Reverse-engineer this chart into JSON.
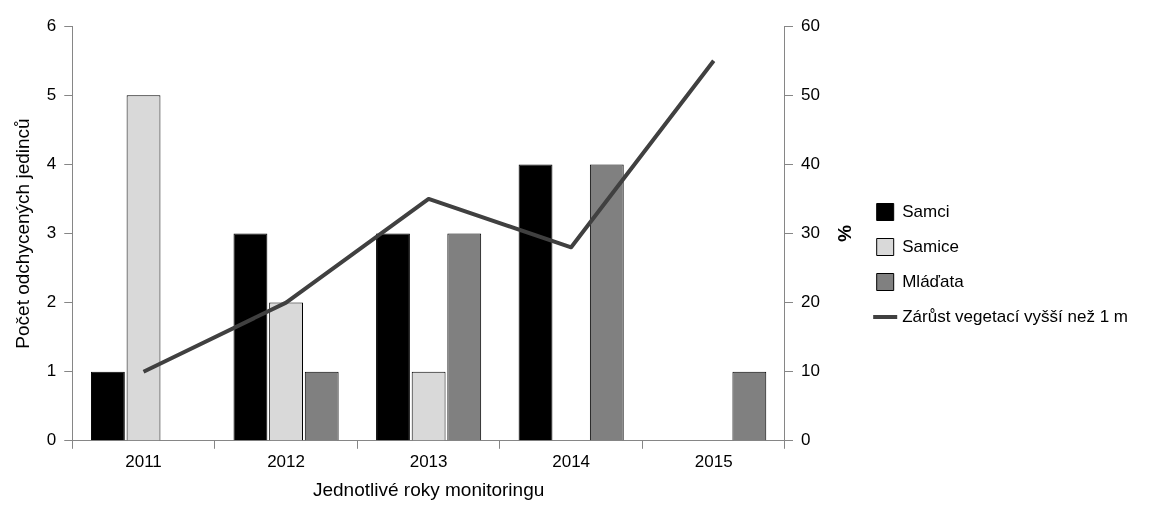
{
  "chart_data": {
    "type": "bar",
    "xlabel": "Jednotlivé roky monitoringu",
    "ylabel": "Počet odchycených jedinců",
    "y2label": "%",
    "categories": [
      "2011",
      "2012",
      "2013",
      "2014",
      "2015"
    ],
    "series": [
      {
        "name": "Samci",
        "color": "#000000",
        "values": [
          1,
          3,
          3,
          4,
          0
        ]
      },
      {
        "name": "Samice",
        "color": "#d9d9d9",
        "values": [
          5,
          2,
          1,
          0,
          0
        ]
      },
      {
        "name": "Mláďata",
        "color": "#808080",
        "values": [
          0,
          1,
          3,
          4,
          1
        ]
      },
      {
        "name": "Zárůst vegetací vyšší než 1 m",
        "color": "#404040",
        "type": "line",
        "axis": "y2",
        "values": [
          10,
          20,
          35,
          28,
          55
        ]
      }
    ],
    "ylim": [
      0,
      6
    ],
    "yticks": [
      0,
      1,
      2,
      3,
      4,
      5,
      6
    ],
    "y2lim": [
      0,
      60
    ],
    "y2ticks": [
      0,
      10,
      20,
      30,
      40,
      50,
      60
    ],
    "grid": false,
    "legend": "right",
    "marker": "none",
    "line_style": "solid"
  }
}
